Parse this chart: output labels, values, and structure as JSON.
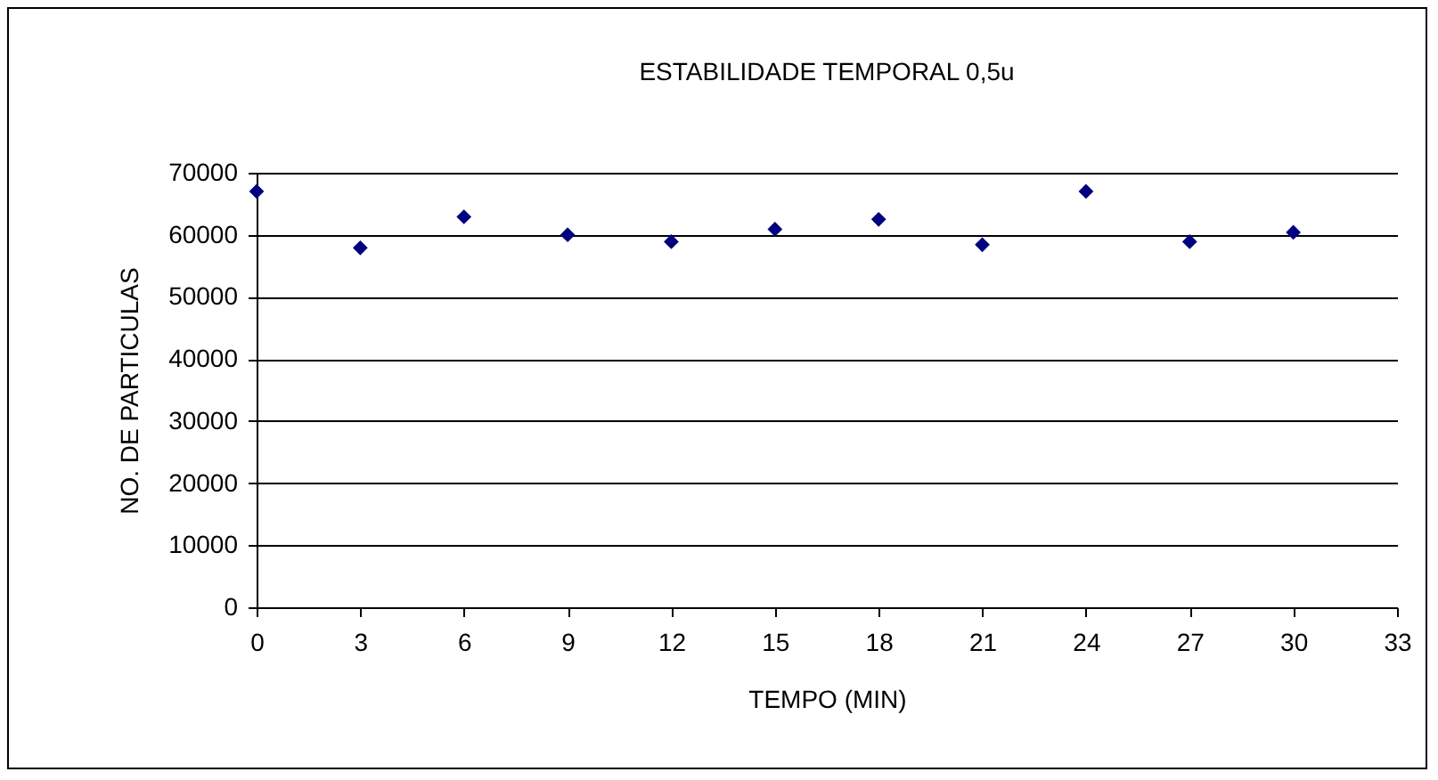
{
  "chart_data": {
    "type": "scatter",
    "title": "ESTABILIDADE TEMPORAL 0,5u",
    "xlabel": "TEMPO (MIN)",
    "ylabel": "NO. DE PARTICULAS",
    "x": [
      0,
      3,
      6,
      9,
      12,
      15,
      18,
      21,
      24,
      27,
      30
    ],
    "series": [
      {
        "color": "#000080",
        "values": [
          67000,
          57900,
          62900,
          60000,
          58900,
          60900,
          62500,
          58400,
          67000,
          58900,
          60400
        ]
      }
    ],
    "xlim": [
      0,
      33
    ],
    "xticks": [
      0,
      3,
      6,
      9,
      12,
      15,
      18,
      21,
      24,
      27,
      30,
      33
    ],
    "ylim": [
      0,
      70000
    ],
    "yticks": [
      0,
      10000,
      20000,
      30000,
      40000,
      50000,
      60000,
      70000
    ],
    "grid": "y",
    "marker": "diamond"
  }
}
